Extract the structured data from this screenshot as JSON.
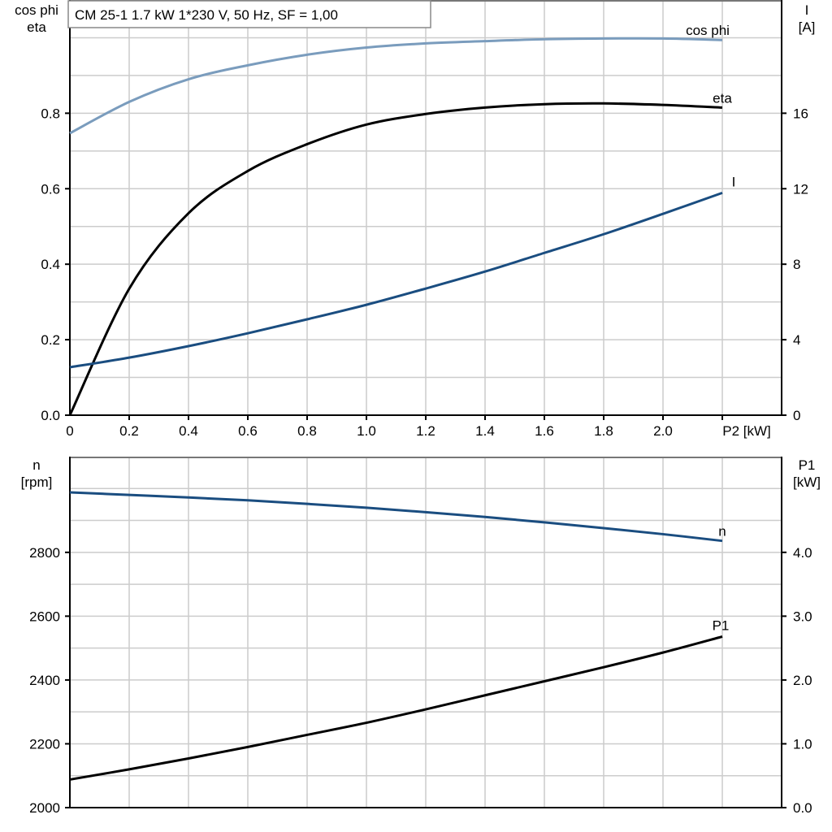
{
  "chart_data": [
    {
      "type": "line",
      "title": "CM 25-1   1.7 kW   1*230 V, 50 Hz, SF = 1,00",
      "xlabel": "P2 [kW]",
      "ylabel_left": [
        "cos phi",
        "eta"
      ],
      "ylabel_right": [
        "I",
        "[A]"
      ],
      "xlim": [
        0,
        2.4
      ],
      "ylim_left": [
        0,
        1.1
      ],
      "ylim_right": [
        0,
        22
      ],
      "x_ticks": [
        "0",
        "0.2",
        "0.4",
        "0.6",
        "0.8",
        "1.0",
        "1.2",
        "1.4",
        "1.6",
        "1.8",
        "2.0"
      ],
      "y_ticks_left": [
        "0.0",
        "0.2",
        "0.4",
        "0.6",
        "0.8"
      ],
      "y_ticks_right": [
        "0",
        "4",
        "8",
        "12",
        "16"
      ],
      "grid": true,
      "x": [
        0,
        0.2,
        0.4,
        0.6,
        0.8,
        1.0,
        1.2,
        1.4,
        1.6,
        1.8,
        2.0,
        2.2
      ],
      "series": [
        {
          "name": "cos phi",
          "axis": "left",
          "color": "#7a9cbd",
          "values": [
            0.747,
            0.83,
            0.89,
            0.927,
            0.955,
            0.974,
            0.985,
            0.991,
            0.996,
            0.998,
            0.998,
            0.994
          ]
        },
        {
          "name": "eta",
          "axis": "left",
          "color": "#000000",
          "values": [
            0.0,
            0.335,
            0.535,
            0.647,
            0.718,
            0.77,
            0.798,
            0.815,
            0.824,
            0.826,
            0.822,
            0.815
          ]
        },
        {
          "name": "I",
          "axis": "right",
          "color": "#1a4d80",
          "values": [
            2.54,
            3.05,
            3.66,
            4.34,
            5.08,
            5.85,
            6.71,
            7.61,
            8.6,
            9.59,
            10.67,
            11.78
          ]
        }
      ]
    },
    {
      "type": "line",
      "xlim": [
        0,
        2.4
      ],
      "ylabel_left": [
        "n",
        "[rpm]"
      ],
      "ylabel_right": [
        "P1",
        "[kW]"
      ],
      "ylim_left": [
        2000,
        3100
      ],
      "ylim_right": [
        0,
        5.5
      ],
      "y_ticks_left": [
        "2000",
        "2200",
        "2400",
        "2600",
        "2800"
      ],
      "y_ticks_right": [
        "0.0",
        "1.0",
        "2.0",
        "3.0",
        "4.0"
      ],
      "grid": true,
      "x": [
        0,
        0.2,
        0.4,
        0.6,
        0.8,
        1.0,
        1.2,
        1.4,
        1.6,
        1.8,
        2.0,
        2.2
      ],
      "series": [
        {
          "name": "n",
          "axis": "left",
          "color": "#1a4d80",
          "values": [
            2988,
            2980,
            2972,
            2963,
            2952,
            2940,
            2926,
            2911,
            2894,
            2876,
            2857,
            2836
          ]
        },
        {
          "name": "P1",
          "axis": "right",
          "color": "#000000",
          "values": [
            0.44,
            0.6,
            0.77,
            0.95,
            1.14,
            1.33,
            1.54,
            1.76,
            1.98,
            2.2,
            2.43,
            2.68
          ]
        }
      ]
    }
  ]
}
